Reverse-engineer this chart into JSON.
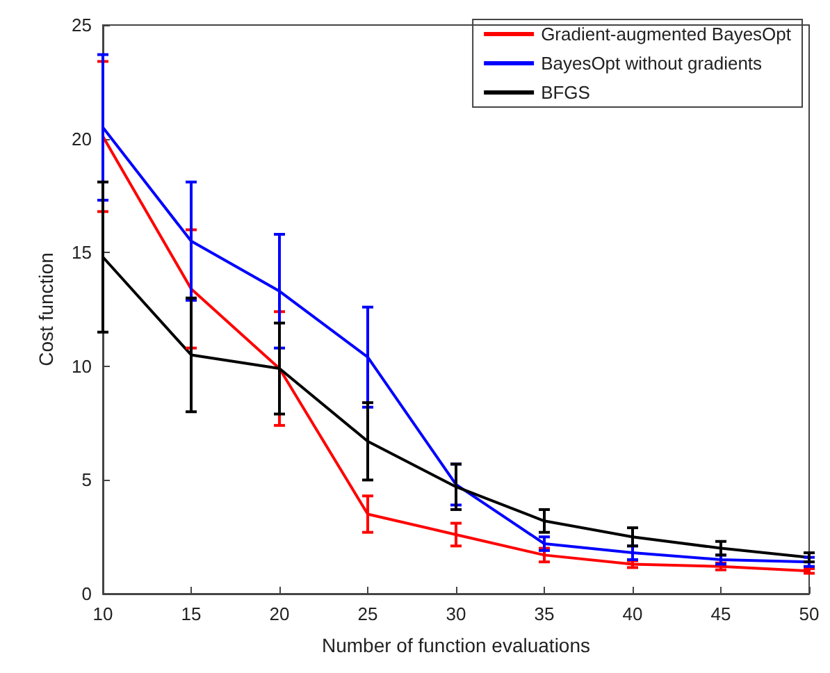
{
  "chart_data": {
    "type": "line",
    "xlabel": "Number of function evaluations",
    "ylabel": "Cost function",
    "x": [
      10,
      15,
      20,
      25,
      30,
      35,
      40,
      45,
      50
    ],
    "xlim": [
      10,
      50
    ],
    "xticks": [
      10,
      15,
      20,
      25,
      30,
      35,
      40,
      45,
      50
    ],
    "ylim": [
      0,
      25
    ],
    "yticks": [
      0,
      5,
      10,
      15,
      20,
      25
    ],
    "grid": false,
    "legend": "top right",
    "marker": "none",
    "line_style": "solid",
    "series": [
      {
        "name": "Gradient-augmented BayesOpt",
        "color": "#ff0000",
        "values": [
          20.1,
          13.4,
          9.9,
          3.5,
          2.6,
          1.7,
          1.3,
          1.2,
          1.0
        ],
        "errors": [
          3.3,
          2.6,
          2.5,
          0.8,
          0.5,
          0.3,
          0.15,
          0.15,
          0.1
        ]
      },
      {
        "name": "BayesOpt without gradients",
        "color": "#0000ff",
        "values": [
          20.5,
          15.5,
          13.3,
          10.4,
          4.8,
          2.2,
          1.8,
          1.5,
          1.4
        ],
        "errors": [
          3.2,
          2.6,
          2.5,
          2.2,
          0.9,
          0.3,
          0.3,
          0.2,
          0.2
        ]
      },
      {
        "name": "BFGS",
        "color": "#000000",
        "values": [
          14.8,
          10.5,
          9.9,
          6.7,
          4.7,
          3.2,
          2.5,
          2.0,
          1.6
        ],
        "errors": [
          3.3,
          2.5,
          2.0,
          1.7,
          1.0,
          0.5,
          0.4,
          0.3,
          0.2
        ]
      }
    ]
  }
}
